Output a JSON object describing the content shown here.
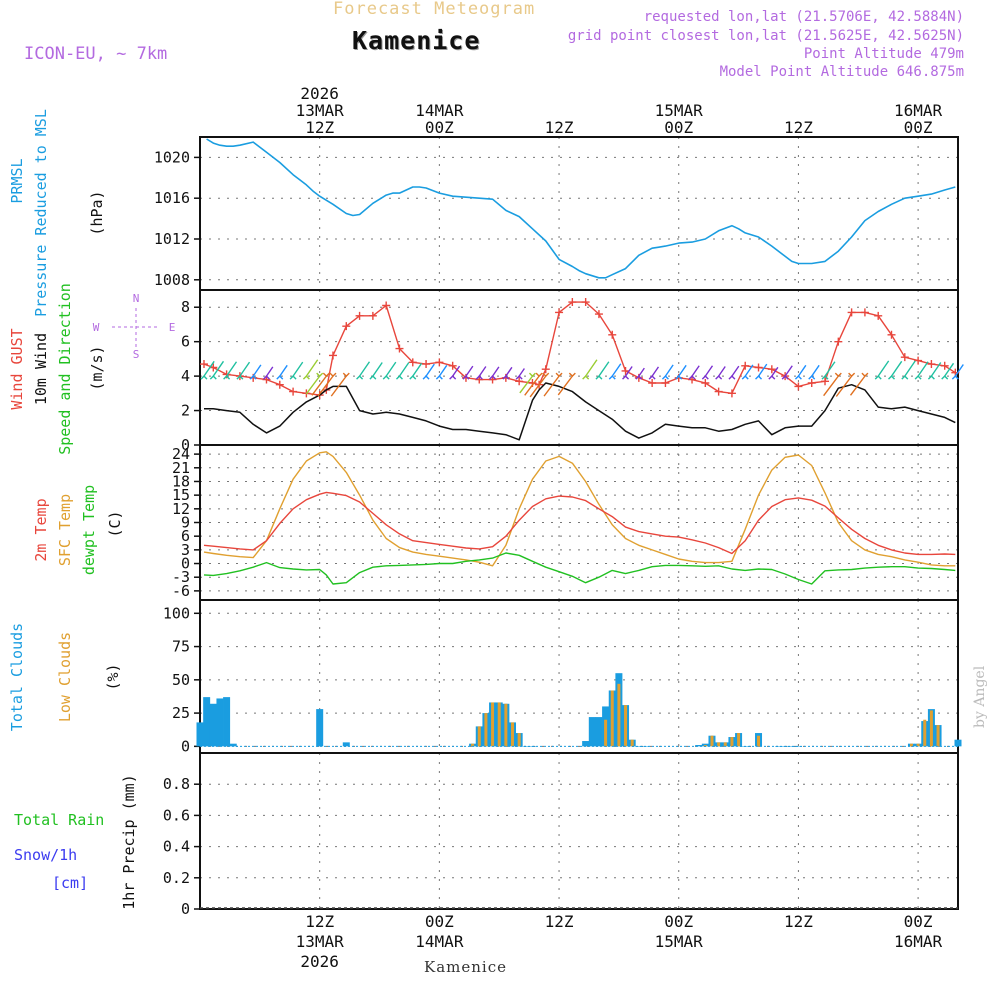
{
  "header": {
    "product_title": "Forecast Meteogram",
    "location_title": "Kamenice",
    "model": "ICON-EU, ~ 7km",
    "requested_point": "requested lon,lat (21.5706E, 42.5884N)",
    "grid_point": "grid point closest lon,lat (21.5625E, 42.5625N)",
    "point_altitude": "Point Altitude 479m",
    "model_point_altitude": "Model Point Altitude 646.875m",
    "footer_location": "Kamenice",
    "credit": "by Angel"
  },
  "colors": {
    "pressure": "#1a9de0",
    "gust": "#e8463c",
    "wind": "#111111",
    "temp2m": "#e8463c",
    "sfc_temp": "#e0a030",
    "dewpoint": "#21c021",
    "total_clouds": "#1a9de0",
    "low_clouds": "#e0a030",
    "rain_label": "#21c021",
    "snow_label": "#3b3bf0",
    "header_purple": "#b36ae0",
    "header_orange": "#e8c98a"
  },
  "chart_data": [
    {
      "type": "line",
      "panel": "pressure",
      "title": "Forecast Meteogram",
      "labels": [
        "PRMSL",
        "Pressure Reduced to MSL"
      ],
      "ylabel": "(hPa)",
      "x_unit": "hours since 2026-03-13 00Z",
      "xlim": [
        3,
        60
      ],
      "xticks": [
        {
          "pos": 12,
          "top": [
            "2026",
            "13MAR",
            "12Z"
          ],
          "bottom": [
            "12Z",
            "13MAR",
            "2026"
          ]
        },
        {
          "pos": 21,
          "top": [
            "14MAR",
            "00Z"
          ],
          "bottom": [
            "00Z",
            "14MAR"
          ]
        },
        {
          "pos": 30,
          "top": [
            "12Z"
          ],
          "bottom": [
            "12Z"
          ]
        },
        {
          "pos": 39,
          "top": [
            "15MAR",
            "00Z"
          ],
          "bottom": [
            "00Z",
            "15MAR"
          ]
        },
        {
          "pos": 48,
          "top": [
            "12Z"
          ],
          "bottom": [
            "12Z"
          ]
        },
        {
          "pos": 57,
          "top": [
            "16MAR",
            "00Z"
          ],
          "bottom": [
            "00Z",
            "16MAR"
          ]
        }
      ],
      "ylim": [
        1007,
        1022
      ],
      "yticks": [
        1008,
        1012,
        1016,
        1020
      ],
      "series": [
        {
          "name": "PRMSL",
          "x": [
            3.5,
            4,
            4.5,
            5,
            5.5,
            6,
            7,
            8,
            9,
            10,
            10.5,
            11,
            11.5,
            12,
            13,
            14,
            14.5,
            15,
            16,
            17,
            17.5,
            18,
            19,
            19.5,
            20,
            21,
            22,
            23,
            24,
            25,
            26,
            27,
            28,
            29,
            30,
            31,
            31.5,
            32,
            33,
            33.5,
            34,
            35,
            36,
            37,
            37.5,
            38,
            39,
            40,
            41,
            42,
            43,
            43.5,
            44,
            45,
            46,
            47,
            47.5,
            48,
            49,
            50,
            51,
            52,
            53,
            54,
            55,
            56,
            57,
            58,
            59,
            59.8
          ],
          "y": [
            1021.8,
            1021.4,
            1021.2,
            1021.1,
            1021.1,
            1021.2,
            1021.5,
            1020.5,
            1019.5,
            1018.3,
            1017.8,
            1017.3,
            1016.7,
            1016.2,
            1015.4,
            1014.5,
            1014.3,
            1014.4,
            1015.5,
            1016.3,
            1016.5,
            1016.5,
            1017.1,
            1017.1,
            1017.0,
            1016.5,
            1016.2,
            1016.1,
            1016.0,
            1015.9,
            1014.8,
            1014.2,
            1013.0,
            1011.8,
            1010.0,
            1009.3,
            1008.9,
            1008.6,
            1008.2,
            1008.2,
            1008.5,
            1009.1,
            1010.4,
            1011.1,
            1011.2,
            1011.3,
            1011.6,
            1011.7,
            1012.0,
            1012.8,
            1013.3,
            1013.0,
            1012.6,
            1012.2,
            1011.3,
            1010.3,
            1009.8,
            1009.6,
            1009.6,
            1009.8,
            1010.8,
            1012.2,
            1013.8,
            1014.7,
            1015.4,
            1016.0,
            1016.2,
            1016.4,
            1016.8,
            1017.1
          ]
        }
      ]
    },
    {
      "type": "line",
      "panel": "wind",
      "labels": [
        "Wind GUST",
        "10m Wind",
        "Speed and Direction"
      ],
      "ylabel": "(m/s)",
      "direction_key": [
        "N",
        "W",
        "E",
        "S"
      ],
      "ylim": [
        0,
        9
      ],
      "yticks": [
        0,
        2,
        4,
        6,
        8
      ],
      "series": [
        {
          "name": "Wind GUST",
          "x": [
            3.3,
            4,
            5,
            6,
            7,
            8,
            9,
            10,
            11,
            12,
            12.5,
            13,
            14,
            15,
            16,
            17,
            18,
            19,
            20,
            21,
            22,
            23,
            24,
            25,
            26,
            27,
            28,
            28.5,
            29,
            30,
            31,
            32,
            33,
            34,
            35,
            36,
            37,
            38,
            39,
            40,
            41,
            42,
            43,
            44,
            45,
            46,
            47,
            48,
            49,
            50,
            51,
            52,
            53,
            54,
            55,
            56,
            57,
            58,
            59,
            59.8
          ],
          "y": [
            4.7,
            4.5,
            4.1,
            4.0,
            3.9,
            3.8,
            3.5,
            3.1,
            3.0,
            2.9,
            3.2,
            5.2,
            6.9,
            7.5,
            7.5,
            8.1,
            5.6,
            4.8,
            4.7,
            4.8,
            4.6,
            3.9,
            3.8,
            3.8,
            3.9,
            3.7,
            3.6,
            3.5,
            4.4,
            7.7,
            8.3,
            8.3,
            7.6,
            6.4,
            4.3,
            3.9,
            3.6,
            3.6,
            3.9,
            3.8,
            3.6,
            3.1,
            3.0,
            4.6,
            4.5,
            4.4,
            4.0,
            3.4,
            3.6,
            3.7,
            6.0,
            7.7,
            7.7,
            7.5,
            6.4,
            5.1,
            4.9,
            4.7,
            4.6,
            4.2
          ]
        },
        {
          "name": "10m Wind",
          "x": [
            3.3,
            4,
            5,
            6,
            7,
            8,
            9,
            10,
            11,
            12,
            12.5,
            13,
            14,
            15,
            16,
            17,
            18,
            19,
            20,
            21,
            22,
            23,
            24,
            25,
            26,
            27,
            28,
            28.5,
            29,
            30,
            31,
            32,
            33,
            34,
            35,
            36,
            37,
            38,
            39,
            40,
            41,
            42,
            43,
            44,
            45,
            46,
            47,
            48,
            49,
            50,
            51,
            52,
            53,
            54,
            55,
            56,
            57,
            58,
            59,
            59.8
          ],
          "y": [
            2.1,
            2.1,
            2.0,
            1.9,
            1.2,
            0.7,
            1.1,
            1.9,
            2.5,
            2.9,
            3.2,
            3.4,
            3.4,
            2.0,
            1.8,
            1.9,
            1.8,
            1.6,
            1.4,
            1.1,
            0.9,
            0.9,
            0.8,
            0.7,
            0.6,
            0.3,
            2.6,
            3.2,
            3.6,
            3.4,
            3.1,
            2.5,
            2.0,
            1.5,
            0.8,
            0.4,
            0.7,
            1.2,
            1.1,
            1.0,
            1.0,
            0.8,
            0.9,
            1.2,
            1.4,
            0.6,
            1.0,
            1.1,
            1.1,
            2.0,
            3.3,
            3.5,
            3.2,
            2.2,
            2.1,
            2.2,
            2.0,
            1.8,
            1.6,
            1.3
          ]
        }
      ]
    },
    {
      "type": "line",
      "panel": "temperature",
      "labels": [
        "2m Temp",
        "SFC Temp",
        "dewpt Temp"
      ],
      "ylabel": "(C)",
      "ylim": [
        -8,
        26
      ],
      "yticks": [
        -6,
        -3,
        0,
        3,
        6,
        9,
        12,
        15,
        18,
        21,
        24
      ],
      "series": [
        {
          "name": "2m Temp",
          "x": [
            3.3,
            4,
            5,
            6,
            7,
            8,
            9,
            10,
            11,
            12,
            12.5,
            13,
            14,
            15,
            16,
            17,
            18,
            19,
            20,
            21,
            22,
            23,
            24,
            25,
            26,
            27,
            28,
            29,
            30,
            31,
            32,
            33,
            34,
            35,
            36,
            37,
            38,
            39,
            40,
            41,
            42,
            43,
            44,
            45,
            46,
            47,
            48,
            49,
            50,
            51,
            52,
            53,
            54,
            55,
            56,
            57,
            58,
            59,
            59.8
          ],
          "y": [
            4.0,
            3.8,
            3.5,
            3.2,
            3.0,
            5.0,
            8.8,
            12.0,
            14.0,
            15.2,
            15.6,
            15.4,
            14.9,
            13.5,
            11.0,
            8.5,
            6.5,
            5.0,
            4.6,
            4.2,
            3.8,
            3.4,
            3.2,
            3.7,
            6.0,
            9.5,
            12.5,
            14.2,
            14.8,
            14.6,
            13.8,
            12.0,
            10.3,
            8.0,
            7.0,
            6.5,
            6.0,
            5.8,
            5.2,
            4.5,
            3.5,
            2.2,
            5.0,
            9.5,
            12.5,
            14.0,
            14.4,
            13.9,
            12.6,
            10.0,
            7.5,
            5.5,
            4.0,
            3.0,
            2.3,
            2.0,
            2.0,
            2.1,
            2.0
          ]
        },
        {
          "name": "SFC Temp",
          "x": [
            3.3,
            4,
            5,
            6,
            7,
            8,
            9,
            10,
            11,
            12,
            12.5,
            13,
            14,
            15,
            16,
            17,
            18,
            19,
            20,
            21,
            22,
            23,
            24,
            25,
            26,
            27,
            28,
            29,
            30,
            31,
            32,
            33,
            34,
            35,
            36,
            37,
            38,
            39,
            40,
            41,
            42,
            43,
            44,
            45,
            46,
            47,
            48,
            49,
            50,
            51,
            52,
            53,
            54,
            55,
            56,
            57,
            58,
            59,
            59.8
          ],
          "y": [
            2.5,
            2.2,
            1.8,
            1.5,
            1.3,
            5.0,
            12.0,
            18.5,
            22.5,
            24.3,
            24.5,
            23.5,
            20.0,
            15.0,
            9.5,
            5.5,
            3.5,
            2.5,
            2.0,
            1.6,
            1.2,
            0.8,
            0.3,
            -0.5,
            4.0,
            12.0,
            18.5,
            22.5,
            23.5,
            22.0,
            18.0,
            13.0,
            8.5,
            5.5,
            4.0,
            3.0,
            2.0,
            1.0,
            0.5,
            0.2,
            0.2,
            0.5,
            7.5,
            15.0,
            20.5,
            23.3,
            23.8,
            21.5,
            15.5,
            9.0,
            5.0,
            3.0,
            2.0,
            1.5,
            0.8,
            0.3,
            -0.3,
            -0.5,
            -0.5
          ]
        },
        {
          "name": "dewpt Temp",
          "x": [
            3.3,
            4,
            5,
            6,
            7,
            8,
            9,
            10,
            11,
            12,
            12.5,
            13,
            14,
            15,
            16,
            17,
            18,
            19,
            20,
            21,
            22,
            23,
            24,
            25,
            26,
            27,
            28,
            29,
            30,
            31,
            32,
            33,
            34,
            35,
            36,
            37,
            38,
            39,
            40,
            41,
            42,
            43,
            44,
            45,
            46,
            47,
            48,
            49,
            50,
            51,
            52,
            53,
            54,
            55,
            56,
            57,
            58,
            59,
            59.8
          ],
          "y": [
            -2.5,
            -2.6,
            -2.2,
            -1.6,
            -0.8,
            0.2,
            -0.9,
            -1.2,
            -1.4,
            -1.3,
            -2.5,
            -4.5,
            -4.2,
            -2.0,
            -0.8,
            -0.5,
            -0.4,
            -0.3,
            -0.2,
            0.0,
            0.0,
            0.5,
            0.8,
            1.2,
            2.3,
            1.8,
            0.5,
            -0.8,
            -1.8,
            -2.8,
            -4.2,
            -3.0,
            -1.5,
            -2.2,
            -1.5,
            -0.7,
            -0.4,
            -0.4,
            -0.5,
            -0.6,
            -0.5,
            -1.2,
            -1.5,
            -1.2,
            -1.3,
            -2.3,
            -3.5,
            -4.5,
            -1.6,
            -1.4,
            -1.3,
            -1.0,
            -0.8,
            -0.7,
            -0.7,
            -1.0,
            -1.1,
            -1.3,
            -1.5
          ]
        }
      ]
    },
    {
      "type": "bar",
      "panel": "clouds",
      "labels": [
        "Total Clouds",
        "Low Clouds"
      ],
      "ylabel": "(%)",
      "ylim": [
        -5,
        110
      ],
      "yticks": [
        0,
        25,
        50,
        75,
        100
      ],
      "series": [
        {
          "name": "Total Clouds",
          "x": [
            3,
            3.5,
            4,
            4.5,
            5,
            5.5,
            12,
            14,
            23.5,
            24,
            24.5,
            25,
            25.5,
            26,
            26.5,
            27,
            27.5,
            28,
            32,
            32.5,
            33,
            33.5,
            34,
            34.5,
            35,
            35.5,
            36,
            36.5,
            40.5,
            41,
            41.5,
            42,
            42.5,
            43,
            43.5,
            44,
            45,
            46.5,
            47,
            47.5,
            48,
            56.5,
            57,
            57.5,
            58,
            58.5,
            60
          ],
          "y": [
            18,
            37,
            32,
            36,
            37,
            2,
            28,
            3,
            2,
            15,
            25,
            33,
            33,
            32,
            18,
            10,
            0,
            0,
            4,
            22,
            22,
            30,
            42,
            55,
            31,
            5,
            0,
            0,
            1,
            2,
            8,
            3,
            3,
            7,
            10,
            0,
            10,
            0,
            0,
            0,
            0,
            2,
            2,
            19,
            28,
            16,
            5
          ]
        },
        {
          "name": "Low Clouds",
          "x": [
            23.5,
            24,
            24.5,
            25,
            25.5,
            26,
            26.5,
            27,
            32,
            32.5,
            33,
            33.5,
            34,
            34.5,
            35,
            35.5,
            41,
            41.5,
            42,
            42.5,
            43,
            43.5,
            45,
            56.5,
            57,
            57.5,
            58,
            58.5
          ],
          "y": [
            2,
            15,
            25,
            33,
            33,
            32,
            18,
            10,
            0,
            0,
            0,
            20,
            42,
            47,
            31,
            5,
            1,
            8,
            3,
            3,
            7,
            10,
            8,
            2,
            2,
            20,
            27,
            16
          ]
        }
      ]
    },
    {
      "type": "bar",
      "panel": "precipitation",
      "labels": [
        "Total Rain",
        "Snow/1h",
        "[cm]"
      ],
      "ylabel": "1hr Precip (mm)",
      "ylim": [
        0,
        1.0
      ],
      "yticks": [
        0,
        0.2,
        0.4,
        0.6,
        0.8
      ],
      "series": [
        {
          "name": "Total Rain",
          "x": [],
          "y": []
        },
        {
          "name": "Snow/1h",
          "x": [],
          "y": []
        }
      ]
    }
  ]
}
